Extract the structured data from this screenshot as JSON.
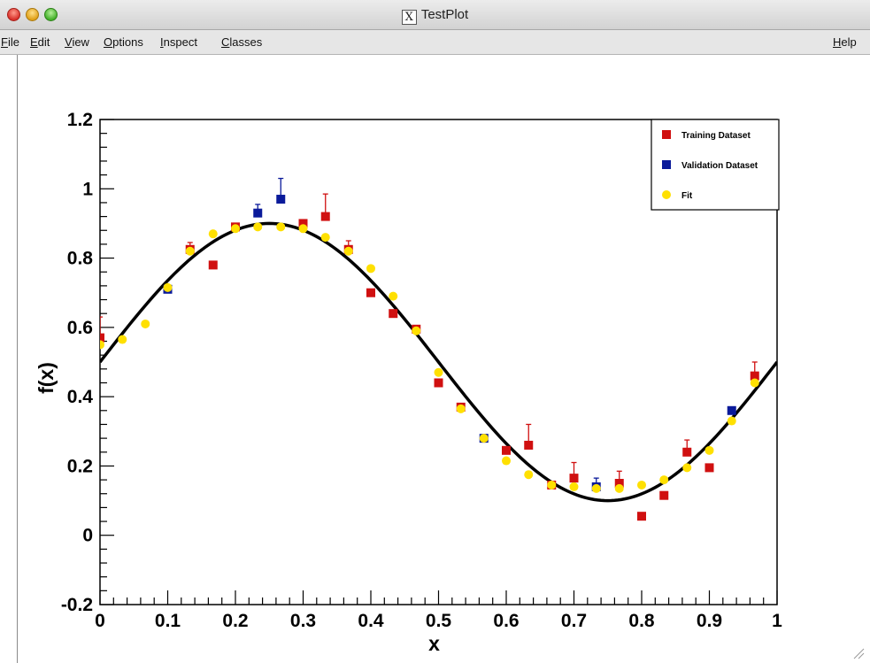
{
  "window": {
    "title": "TestPlot"
  },
  "menu": {
    "items": [
      {
        "accel": "F",
        "rest": "ile"
      },
      {
        "accel": "E",
        "rest": "dit"
      },
      {
        "accel": "V",
        "rest": "iew"
      },
      {
        "accel": "O",
        "rest": "ptions"
      },
      {
        "accel": "I",
        "rest": "nspect"
      },
      {
        "accel": "C",
        "rest": "lasses"
      }
    ],
    "help": {
      "accel": "H",
      "rest": "elp"
    }
  },
  "chart_data": {
    "type": "scatter",
    "xlabel": "x",
    "ylabel": "f(x)",
    "xlim": [
      0,
      1
    ],
    "ylim": [
      -0.2,
      1.2
    ],
    "x_ticks": [
      "0",
      "0.1",
      "0.2",
      "0.3",
      "0.4",
      "0.5",
      "0.6",
      "0.7",
      "0.8",
      "0.9",
      "1"
    ],
    "y_ticks": [
      "-0.2",
      "0",
      "0.2",
      "0.4",
      "0.6",
      "0.8",
      "1",
      "1.2"
    ],
    "legend_position": "top-right",
    "series": [
      {
        "name": "Training Dataset",
        "marker": "square",
        "color": "#d01010",
        "points": [
          {
            "x": 0.0,
            "y": 0.57,
            "err": 0.06
          },
          {
            "x": 0.133,
            "y": 0.825,
            "err": 0.02
          },
          {
            "x": 0.167,
            "y": 0.78,
            "err": 0
          },
          {
            "x": 0.2,
            "y": 0.89,
            "err": 0
          },
          {
            "x": 0.3,
            "y": 0.9,
            "err": 0
          },
          {
            "x": 0.333,
            "y": 0.92,
            "err": 0.065
          },
          {
            "x": 0.367,
            "y": 0.825,
            "err": 0.025
          },
          {
            "x": 0.4,
            "y": 0.7,
            "err": 0
          },
          {
            "x": 0.433,
            "y": 0.64,
            "err": 0
          },
          {
            "x": 0.467,
            "y": 0.595,
            "err": 0
          },
          {
            "x": 0.5,
            "y": 0.44,
            "err": 0
          },
          {
            "x": 0.533,
            "y": 0.37,
            "err": 0
          },
          {
            "x": 0.6,
            "y": 0.245,
            "err": 0
          },
          {
            "x": 0.633,
            "y": 0.26,
            "err": 0.06
          },
          {
            "x": 0.667,
            "y": 0.145,
            "err": 0
          },
          {
            "x": 0.7,
            "y": 0.165,
            "err": 0.045
          },
          {
            "x": 0.767,
            "y": 0.15,
            "err": 0.035
          },
          {
            "x": 0.8,
            "y": 0.055,
            "err": 0
          },
          {
            "x": 0.833,
            "y": 0.115,
            "err": 0
          },
          {
            "x": 0.867,
            "y": 0.24,
            "err": 0.035
          },
          {
            "x": 0.9,
            "y": 0.195,
            "err": 0
          },
          {
            "x": 0.967,
            "y": 0.46,
            "err": 0.04
          }
        ]
      },
      {
        "name": "Validation Dataset",
        "marker": "square",
        "color": "#0a1a9a",
        "points": [
          {
            "x": 0.1,
            "y": 0.71,
            "err": 0.01
          },
          {
            "x": 0.233,
            "y": 0.93,
            "err": 0.025
          },
          {
            "x": 0.267,
            "y": 0.97,
            "err": 0.06
          },
          {
            "x": 0.567,
            "y": 0.28,
            "err": 0.01
          },
          {
            "x": 0.733,
            "y": 0.14,
            "err": 0.025
          },
          {
            "x": 0.933,
            "y": 0.36,
            "err": 0.01
          }
        ]
      },
      {
        "name": "Fit",
        "marker": "circle",
        "color": "#ffe000",
        "points": [
          {
            "x": 0.0,
            "y": 0.55
          },
          {
            "x": 0.033,
            "y": 0.565
          },
          {
            "x": 0.067,
            "y": 0.61
          },
          {
            "x": 0.1,
            "y": 0.715
          },
          {
            "x": 0.133,
            "y": 0.82
          },
          {
            "x": 0.167,
            "y": 0.87
          },
          {
            "x": 0.2,
            "y": 0.885
          },
          {
            "x": 0.233,
            "y": 0.89
          },
          {
            "x": 0.267,
            "y": 0.89
          },
          {
            "x": 0.3,
            "y": 0.885
          },
          {
            "x": 0.333,
            "y": 0.86
          },
          {
            "x": 0.367,
            "y": 0.82
          },
          {
            "x": 0.4,
            "y": 0.77
          },
          {
            "x": 0.433,
            "y": 0.69
          },
          {
            "x": 0.467,
            "y": 0.59
          },
          {
            "x": 0.5,
            "y": 0.47
          },
          {
            "x": 0.533,
            "y": 0.365
          },
          {
            "x": 0.567,
            "y": 0.28
          },
          {
            "x": 0.6,
            "y": 0.215
          },
          {
            "x": 0.633,
            "y": 0.175
          },
          {
            "x": 0.667,
            "y": 0.145
          },
          {
            "x": 0.7,
            "y": 0.14
          },
          {
            "x": 0.733,
            "y": 0.135
          },
          {
            "x": 0.767,
            "y": 0.135
          },
          {
            "x": 0.8,
            "y": 0.145
          },
          {
            "x": 0.833,
            "y": 0.16
          },
          {
            "x": 0.867,
            "y": 0.195
          },
          {
            "x": 0.9,
            "y": 0.245
          },
          {
            "x": 0.933,
            "y": 0.33
          },
          {
            "x": 0.967,
            "y": 0.44
          }
        ]
      }
    ],
    "curve": {
      "type": "function",
      "formula": "0.5 + 0.4*sin(2*pi*x)",
      "color": "#000000"
    }
  }
}
